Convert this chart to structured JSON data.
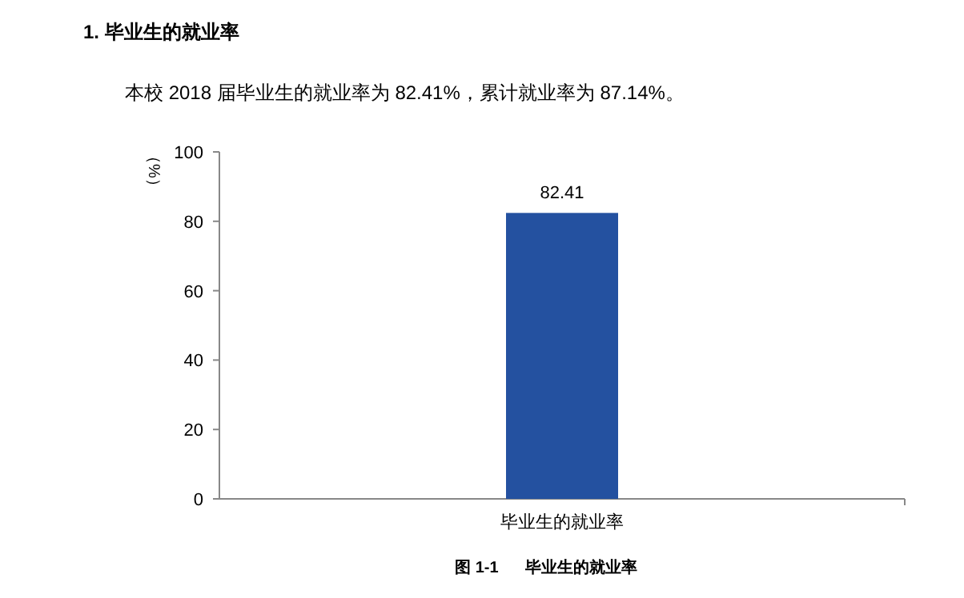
{
  "chart_data": {
    "type": "bar",
    "title": "1.   毕业生的就业率",
    "subtitle": "本校 2018 届毕业生的就业率为 82.41%，累计就业率为 87.14%。",
    "ylabel": "（%）",
    "categories": [
      "毕业生的就业率"
    ],
    "series": [
      {
        "color": "#2451a0",
        "values": [
          82.41
        ]
      }
    ],
    "ylim": [
      0,
      100
    ],
    "yticks": [
      0,
      20,
      40,
      60,
      80,
      100
    ],
    "data_labels": true,
    "annotations": [
      "图 1-1      毕业生的就业率"
    ]
  }
}
